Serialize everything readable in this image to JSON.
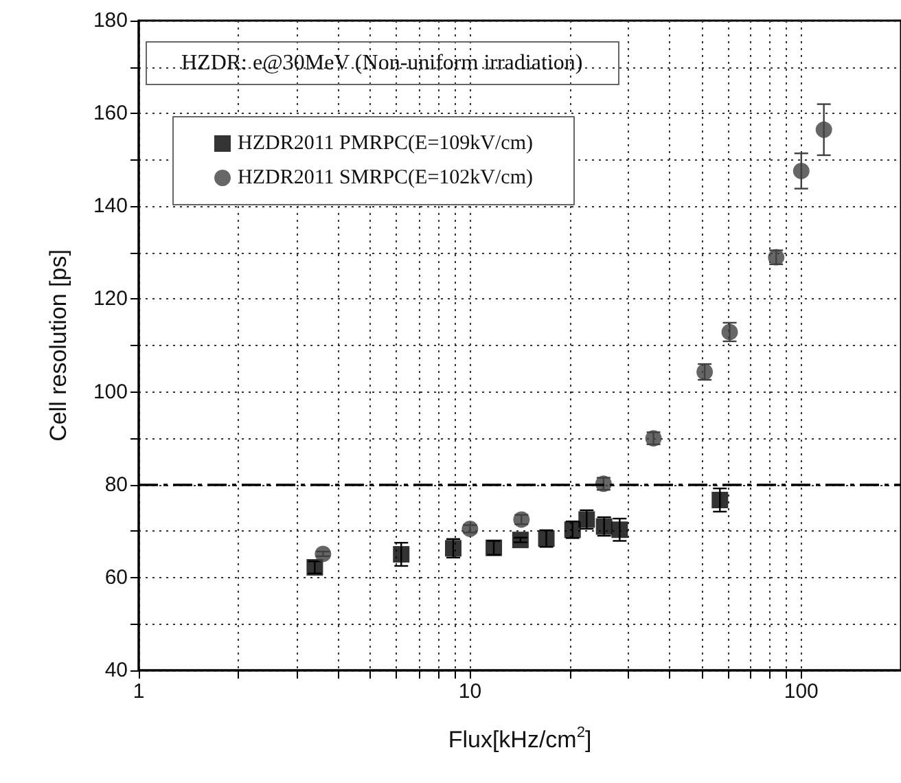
{
  "chart_data": {
    "type": "scatter",
    "xlabel": "Flux[kHz/cm$^{2}$]",
    "ylabel": "Cell resolution [ps]",
    "annotations": [
      "HZDR: e@30MeV (Non-uniform irradiation)"
    ],
    "log": "x",
    "grid": true,
    "legend": "top left",
    "xlim": [
      1,
      200
    ],
    "ylim": [
      40,
      180
    ],
    "xticks": [
      1,
      {
        "value": 2,
        "label": null
      },
      {
        "value": 3,
        "label": null
      },
      {
        "value": 4,
        "label": null
      },
      {
        "value": 5,
        "label": null
      },
      {
        "value": 6,
        "label": null
      },
      {
        "value": 7,
        "label": null
      },
      {
        "value": 8,
        "label": null
      },
      {
        "value": 9,
        "label": null
      },
      10,
      {
        "value": 20,
        "label": null
      },
      {
        "value": 30,
        "label": null
      },
      {
        "value": 40,
        "label": null
      },
      {
        "value": 50,
        "label": null
      },
      {
        "value": 60,
        "label": null
      },
      {
        "value": 70,
        "label": null
      },
      {
        "value": 80,
        "label": null
      },
      {
        "value": 90,
        "label": null
      },
      100,
      {
        "value": 200,
        "label": null
      }
    ],
    "yticks": [
      40,
      {
        "value": 50,
        "label": null
      },
      60,
      {
        "value": 70,
        "label": null
      },
      80,
      {
        "value": 90,
        "label": null
      },
      100,
      {
        "value": 110,
        "label": null
      },
      120,
      {
        "value": 130,
        "label": null
      },
      140,
      {
        "value": 150,
        "label": null
      },
      160,
      {
        "value": 170,
        "label": null
      },
      180
    ],
    "ref_lines": [
      {
        "axis": "y",
        "value": 80,
        "label": null,
        "color": "#000000",
        "line_style": "dashdot"
      }
    ],
    "series": [
      {
        "name": "HZDR2011 PMRPC(E=109kV/cm)",
        "color": "#000000",
        "marker": "square",
        "x": [
          3.4,
          6.2,
          8.9,
          11.8,
          14.2,
          17,
          20.4,
          22.5,
          25.4,
          28.3,
          56.8
        ],
        "values": [
          62.2,
          65,
          66.3,
          66.4,
          68.1,
          68.4,
          70.3,
          72.5,
          71,
          70.3,
          76.7
        ],
        "errors": [
          1.3,
          2.5,
          2,
          1.5,
          0.5,
          1.8,
          1.8,
          2,
          2,
          2.4,
          2.5
        ]
      },
      {
        "name": "HZDR2011 SMRPC(E=102kV/cm)",
        "color": "#404040",
        "marker": "circle",
        "x": [
          3.6,
          10,
          14.3,
          25.3,
          35.8,
          51.1,
          60.8,
          84,
          100,
          117
        ],
        "values": [
          65.1,
          70.5,
          72.5,
          80.2,
          90,
          104.3,
          112.9,
          129,
          147.6,
          156.5
        ],
        "errors": [
          0.5,
          0.8,
          1,
          1.3,
          1.3,
          1.7,
          2,
          1.5,
          3.8,
          5.5
        ]
      }
    ]
  }
}
